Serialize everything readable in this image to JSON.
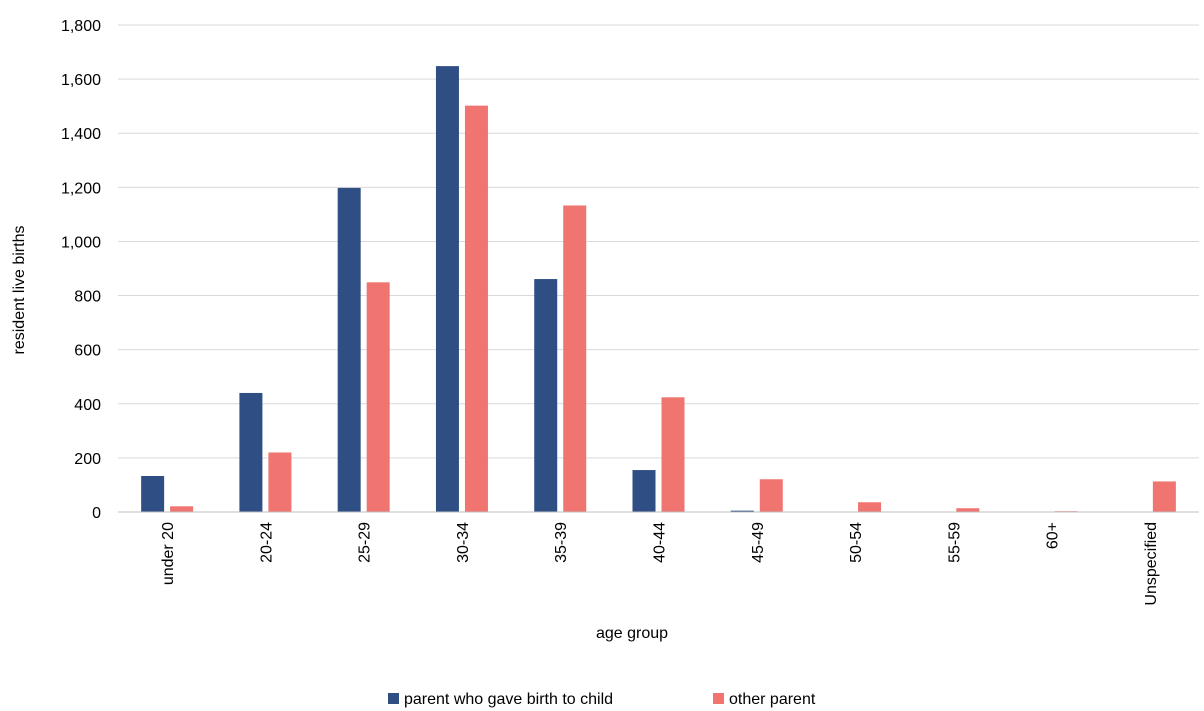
{
  "chart_data": {
    "type": "bar",
    "title": "",
    "xlabel": "age group",
    "ylabel": "resident live births",
    "categories": [
      "under 20",
      "20-24",
      "25-29",
      "30-34",
      "35-39",
      "40-44",
      "45-49",
      "50-54",
      "55-59",
      "60+",
      "Unspecified"
    ],
    "series": [
      {
        "name": "parent who gave birth to child",
        "color": "#2E4E84",
        "values": [
          133,
          440,
          1198,
          1648,
          861,
          155,
          5,
          0,
          0,
          0,
          0
        ]
      },
      {
        "name": "other parent",
        "color": "#F07470",
        "values": [
          21,
          220,
          849,
          1502,
          1133,
          424,
          121,
          36,
          14,
          3,
          113
        ]
      }
    ],
    "ylim": [
      0,
      1800
    ],
    "yticks": [
      0,
      200,
      400,
      600,
      800,
      1000,
      1200,
      1400,
      1600,
      1800
    ],
    "ytick_labels": [
      "0",
      "200",
      "400",
      "600",
      "800",
      "1,000",
      "1,200",
      "1,400",
      "1,600",
      "1,800"
    ],
    "grid": true,
    "legend_position": "bottom"
  }
}
